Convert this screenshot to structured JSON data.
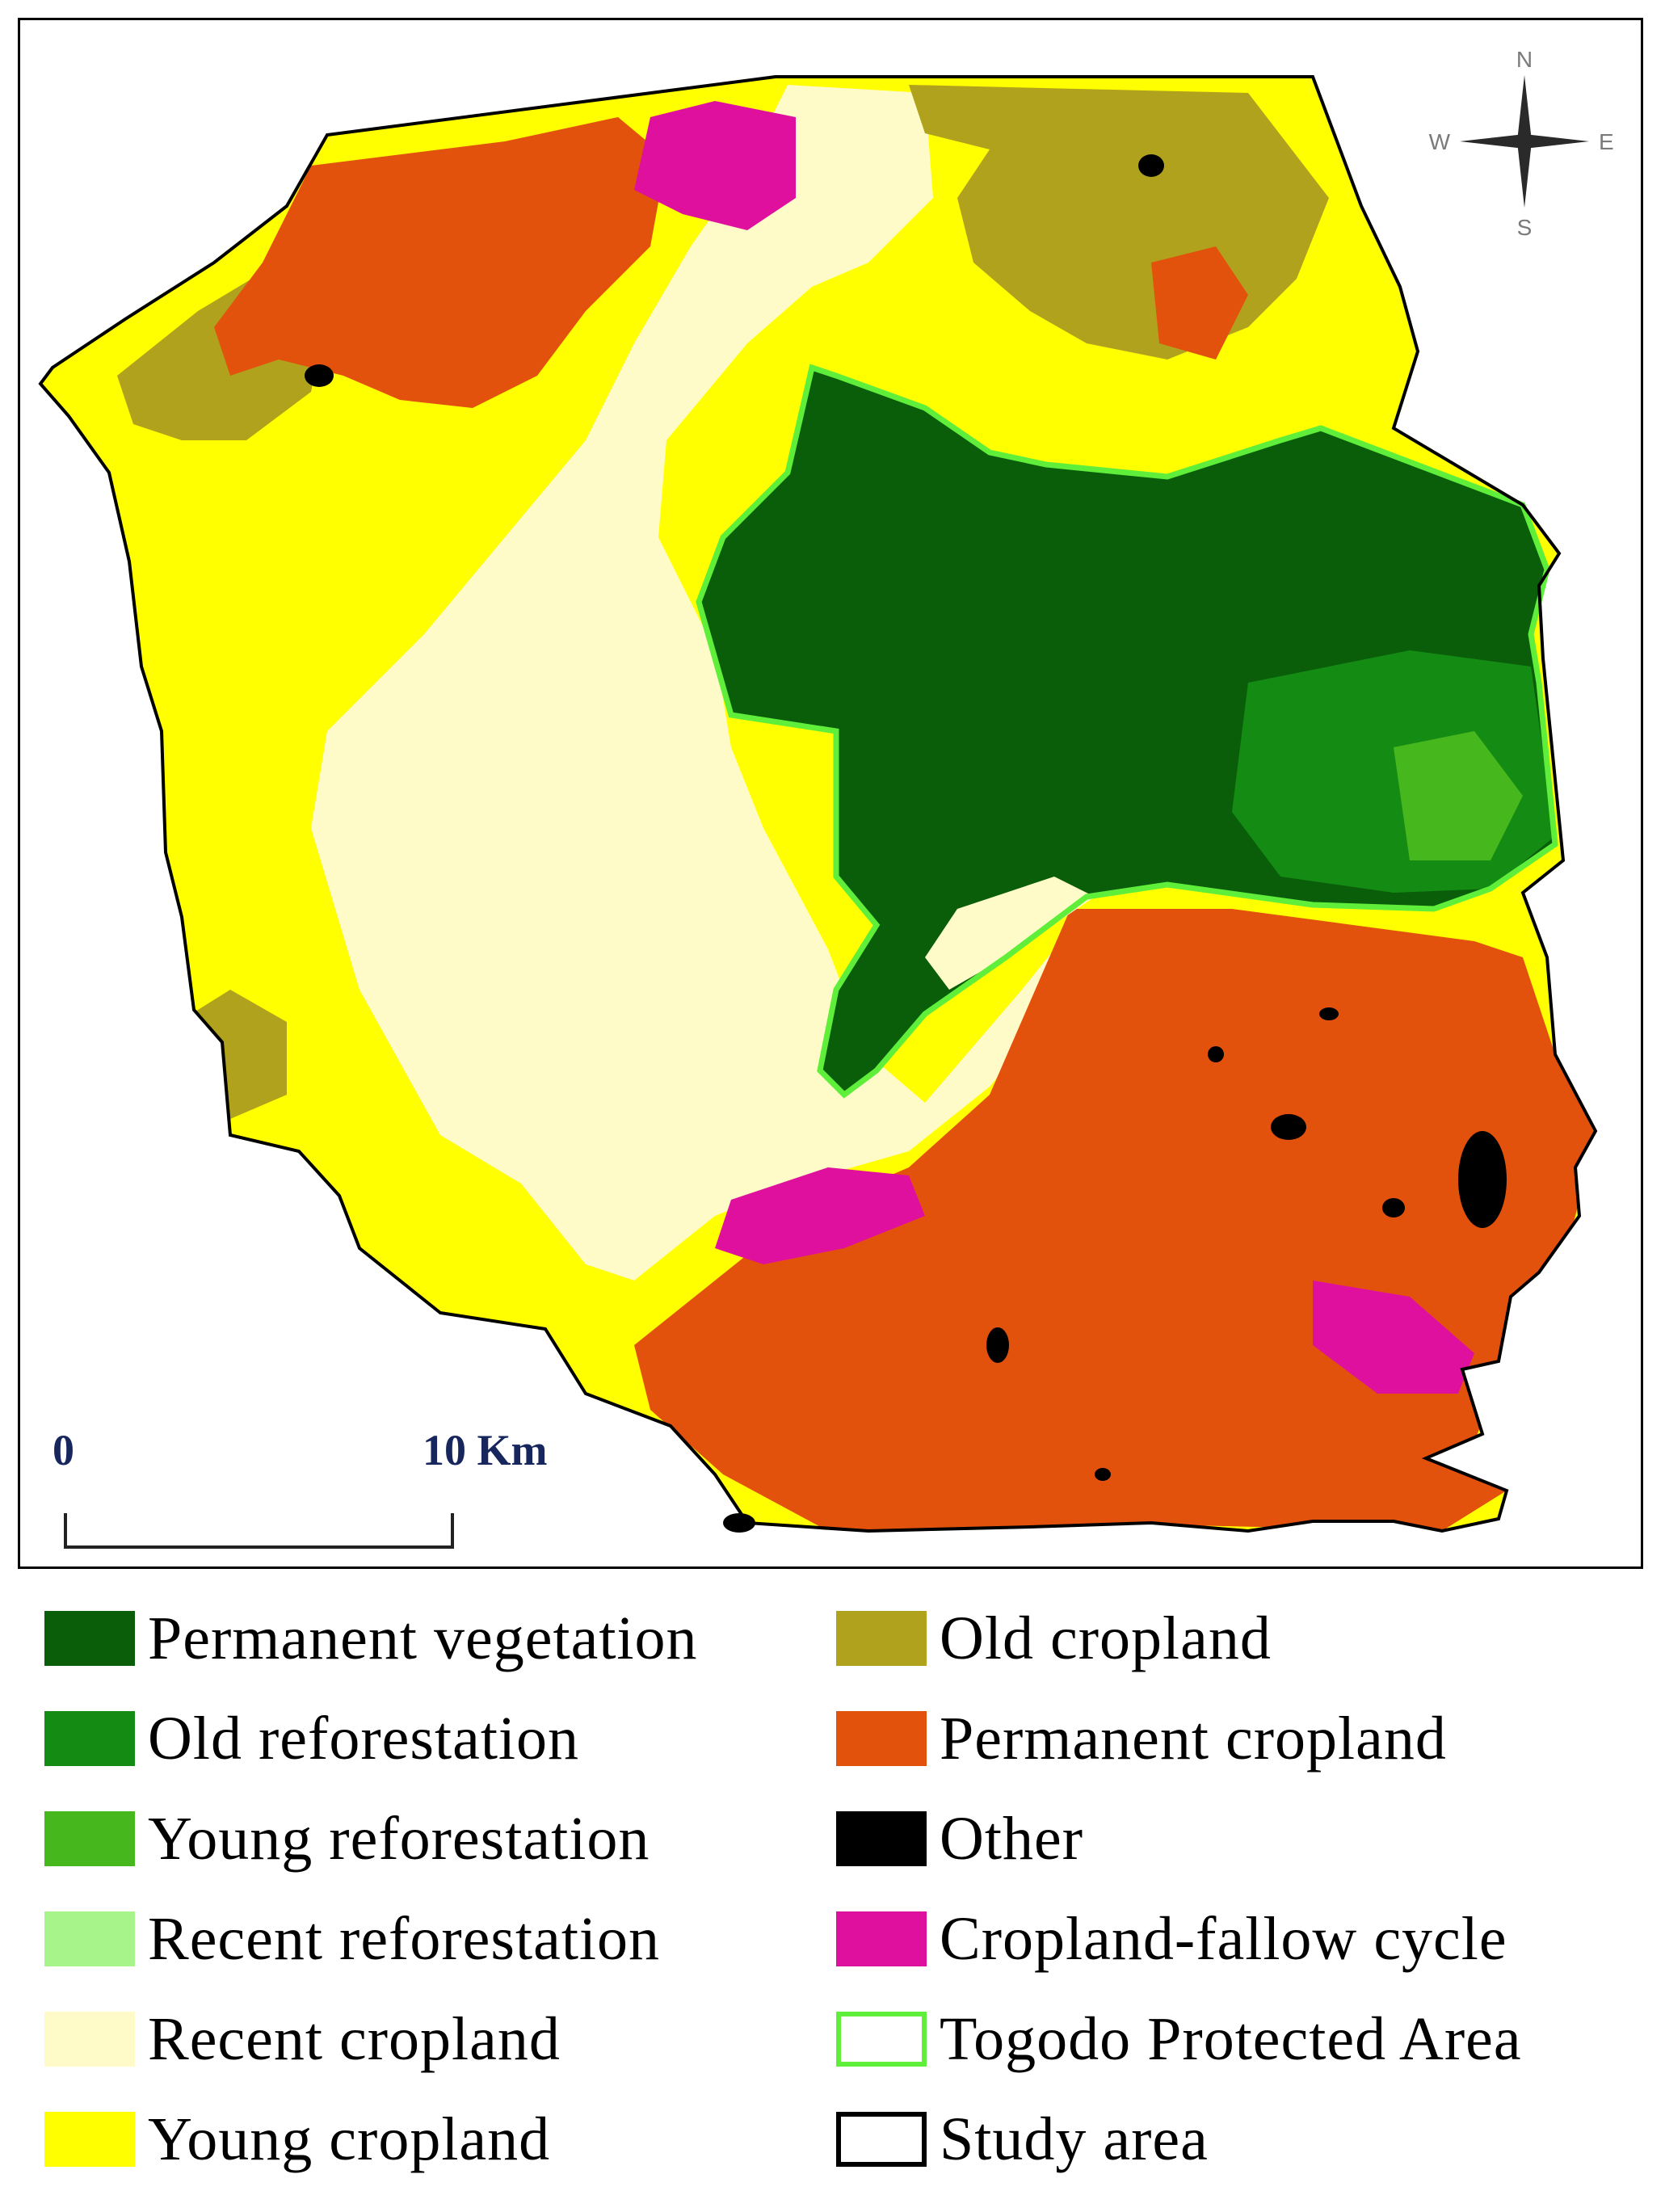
{
  "map": {
    "scale_bar": {
      "start_label": "0",
      "end_label": "10 Km"
    },
    "north_arrow": {
      "n": "N",
      "s": "S",
      "e": "E",
      "w": "W"
    },
    "colors": {
      "permanent_vegetation": "#0a5e0a",
      "old_reforestation": "#148c14",
      "young_reforestation": "#46b81e",
      "recent_reforestation": "#a6f48a",
      "recent_cropland": "#fffbc8",
      "young_cropland": "#ffff00",
      "old_cropland": "#b0a21c",
      "permanent_cropland": "#e3520c",
      "other": "#000000",
      "cropland_fallow_cycle": "#e0109e",
      "protected_area_outline": "#5fee3a",
      "study_area_outline": "#000000"
    }
  },
  "legend": {
    "items": [
      {
        "label": "Permanent vegetation",
        "color": "#0a5e0a",
        "kind": "fill"
      },
      {
        "label": "Old reforestation",
        "color": "#148c14",
        "kind": "fill"
      },
      {
        "label": "Young reforestation",
        "color": "#46b81e",
        "kind": "fill"
      },
      {
        "label": "Recent reforestation",
        "color": "#a6f48a",
        "kind": "fill"
      },
      {
        "label": "Recent cropland",
        "color": "#fffbc8",
        "kind": "fill"
      },
      {
        "label": "Young cropland",
        "color": "#ffff00",
        "kind": "fill"
      },
      {
        "label": "Old cropland",
        "color": "#b0a21c",
        "kind": "fill"
      },
      {
        "label": "Permanent cropland",
        "color": "#e3520c",
        "kind": "fill"
      },
      {
        "label": "Other",
        "color": "#000000",
        "kind": "fill"
      },
      {
        "label": "Cropland-fallow cycle",
        "color": "#e0109e",
        "kind": "fill"
      },
      {
        "label": "Togodo Protected Area",
        "color": "#5fee3a",
        "kind": "outline"
      },
      {
        "label": "Study area",
        "color": "#000000",
        "kind": "outline"
      }
    ]
  }
}
